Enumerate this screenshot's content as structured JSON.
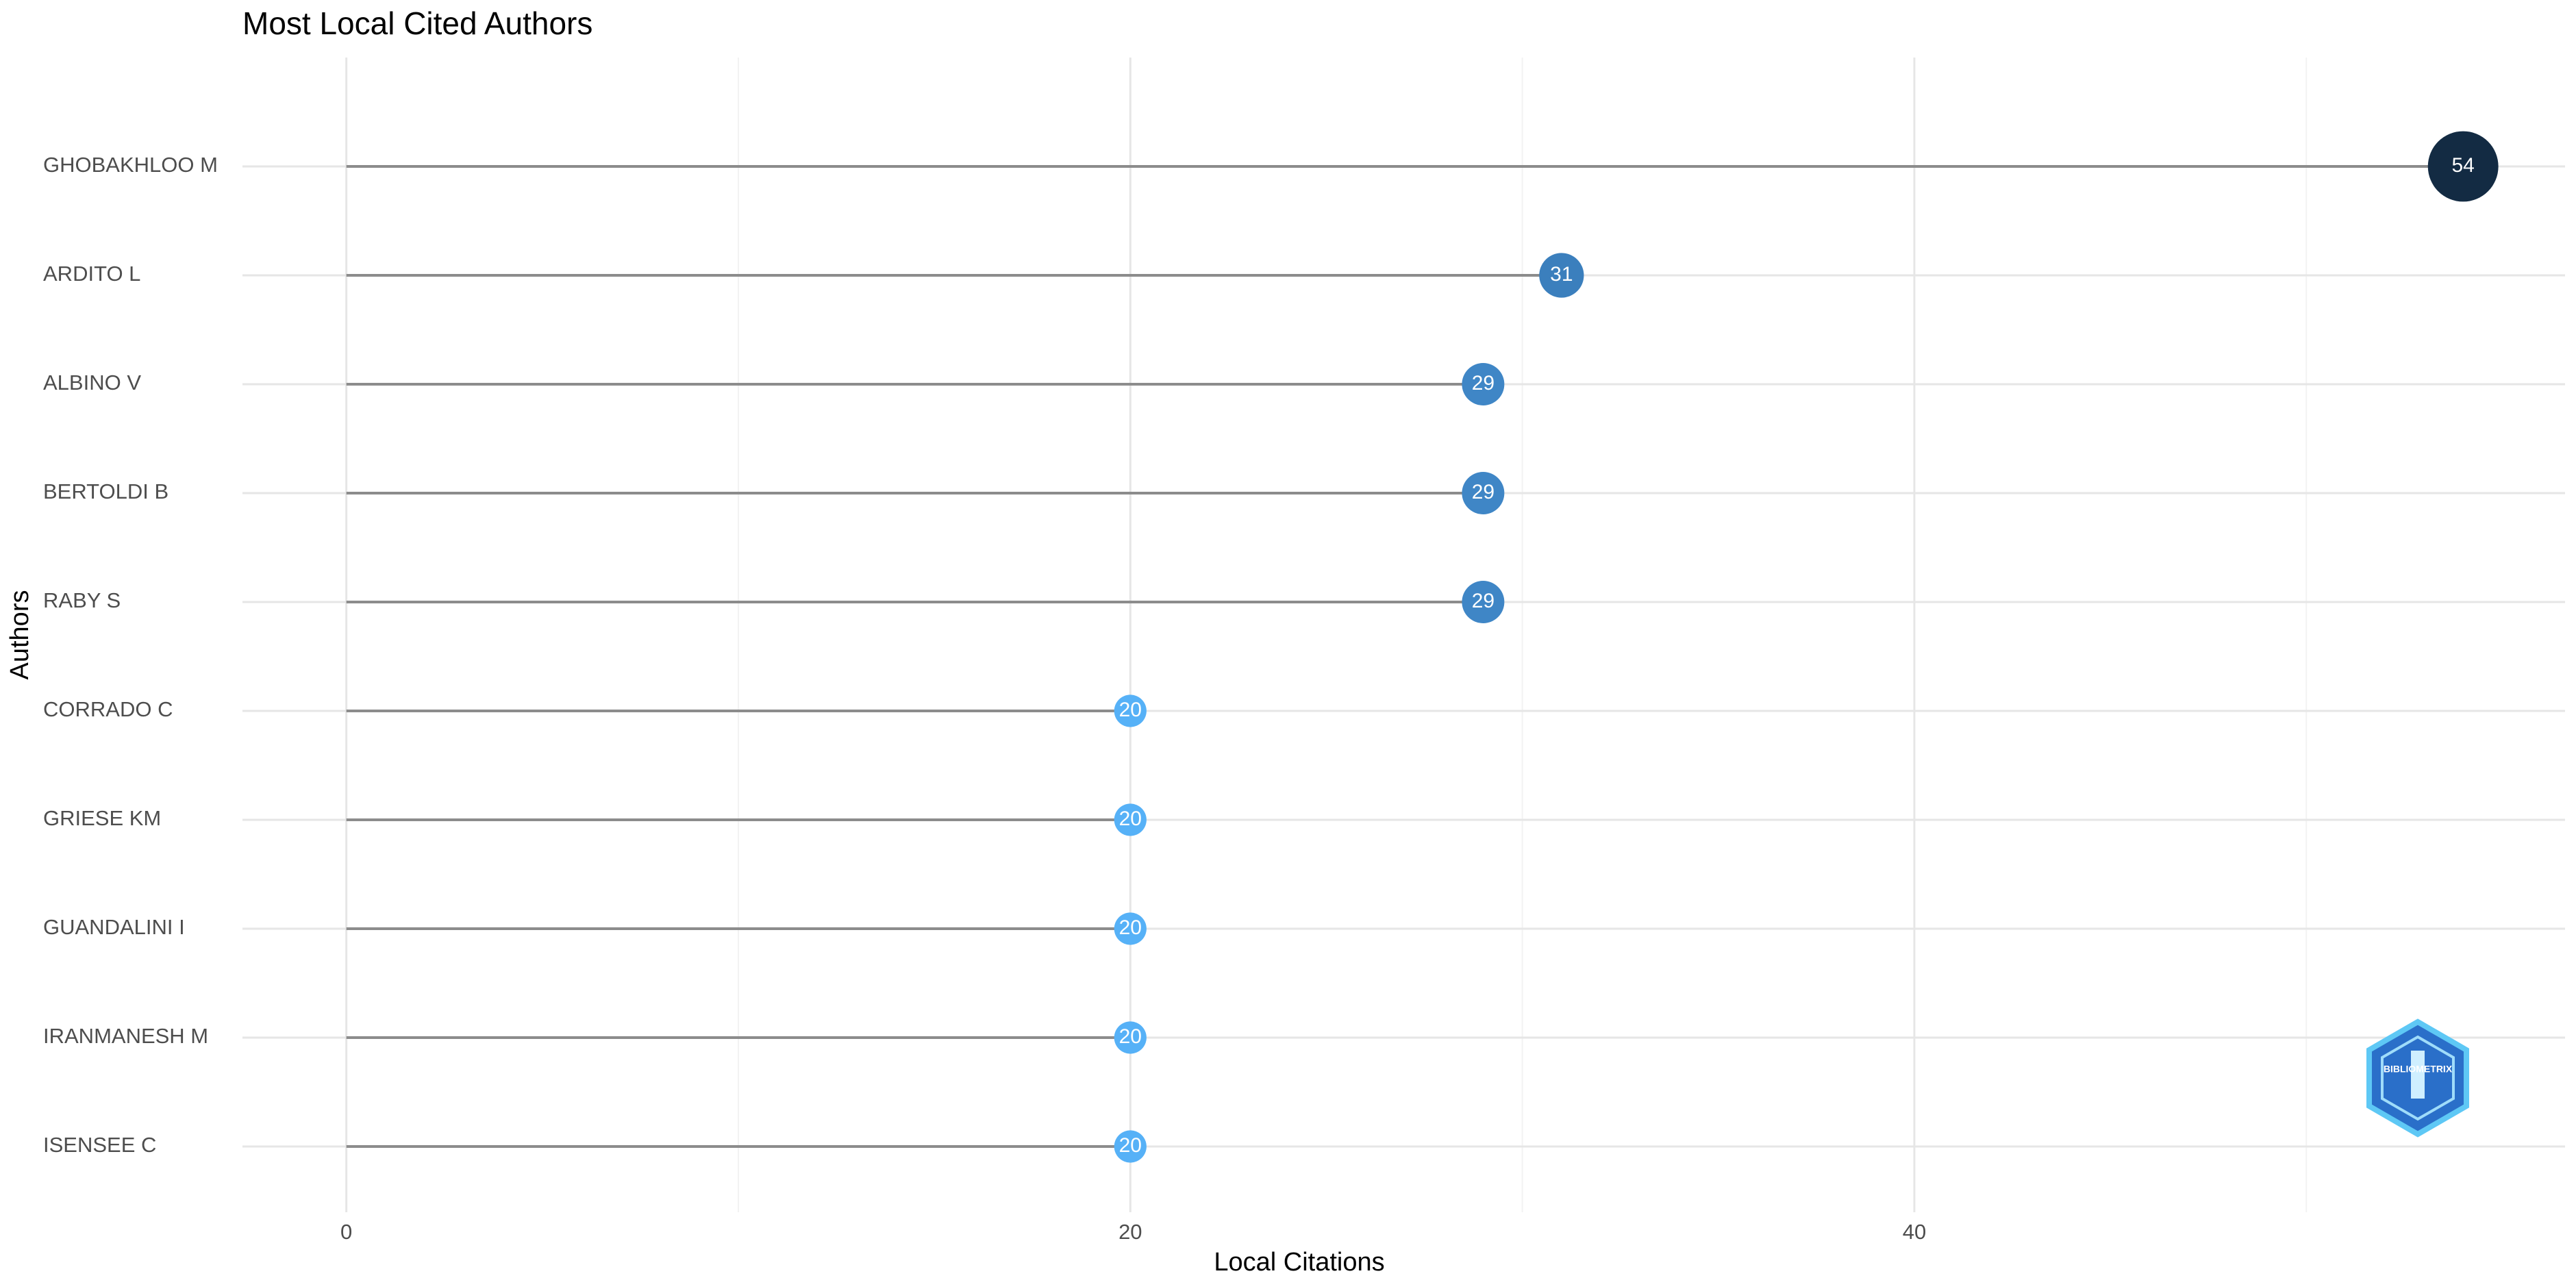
{
  "chart_data": {
    "type": "lollipop",
    "title": "Most Local Cited Authors",
    "x_label": "Local Citations",
    "y_label": "Authors",
    "categories": [
      "GHOBAKHLOO M",
      "ARDITO L",
      "ALBINO V",
      "BERTOLDI B",
      "RABY S",
      "CORRADO C",
      "GRIESE KM",
      "GUANDALINI I",
      "IRANMANESH M",
      "ISENSEE C"
    ],
    "values": [
      54,
      31,
      29,
      29,
      29,
      20,
      20,
      20,
      20,
      20
    ],
    "colors": [
      "#132b43",
      "#3b7fbd",
      "#3f86c6",
      "#3f86c6",
      "#3f86c6",
      "#56b1f7",
      "#56b1f7",
      "#56b1f7",
      "#56b1f7",
      "#56b1f7"
    ],
    "stem_color": "#8c8c8c",
    "xlim": [
      -2.65,
      56.6
    ],
    "xticks": [
      0,
      20,
      40
    ],
    "xminor": [
      10,
      30,
      50
    ],
    "grid": true,
    "logo_text": "BIBLIOMETRIX"
  }
}
